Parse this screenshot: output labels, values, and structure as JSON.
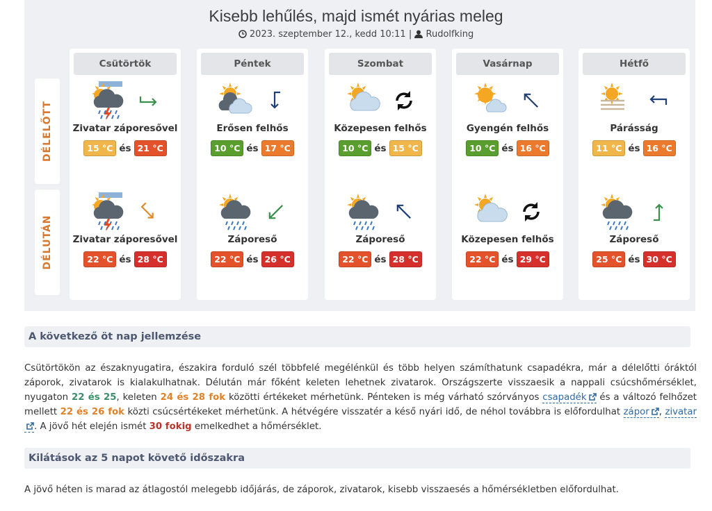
{
  "header": {
    "title": "Kisebb lehűlés, majd ismét nyárias meleg",
    "date": "2023. szeptember 12., kedd 10:11",
    "separator": "|",
    "author": "Rudolfking"
  },
  "periods": [
    "DÉLELŐTT",
    "DÉLUTÁN"
  ],
  "connector": "és",
  "days": [
    {
      "name": "Csütörtök",
      "morning": {
        "weather": "Zivatar záporesővel",
        "min": {
          "text": "15 °C",
          "color": "#f0b64a"
        },
        "max": {
          "text": "21 °C",
          "color": "#e4522c"
        }
      },
      "afternoon": {
        "weather": "Zivatar záporesővel",
        "min": {
          "text": "22 °C",
          "color": "#e4522c"
        },
        "max": {
          "text": "28 °C",
          "color": "#d6302c"
        }
      }
    },
    {
      "name": "Péntek",
      "morning": {
        "weather": "Erősen felhős",
        "min": {
          "text": "10 °C",
          "color": "#5a9e2f"
        },
        "max": {
          "text": "17 °C",
          "color": "#ec7a2c"
        }
      },
      "afternoon": {
        "weather": "Zápores​ő",
        "min": {
          "text": "22 °C",
          "color": "#e4522c"
        },
        "max": {
          "text": "26 °C",
          "color": "#d6302c"
        }
      }
    },
    {
      "name": "Szombat",
      "morning": {
        "weather": "Közepesen felhős",
        "min": {
          "text": "10 °C",
          "color": "#5a9e2f"
        },
        "max": {
          "text": "15 °C",
          "color": "#f0b64a"
        }
      },
      "afternoon": {
        "weather": "Zápores​ő",
        "min": {
          "text": "22 °C",
          "color": "#e4522c"
        },
        "max": {
          "text": "28 °C",
          "color": "#d6302c"
        }
      }
    },
    {
      "name": "Vasárnap",
      "morning": {
        "weather": "Gyengén felhős",
        "min": {
          "text": "10 °C",
          "color": "#5a9e2f"
        },
        "max": {
          "text": "16 °C",
          "color": "#ec7a2c"
        }
      },
      "afternoon": {
        "weather": "Közepesen felhős",
        "min": {
          "text": "22 °C",
          "color": "#e4522c"
        },
        "max": {
          "text": "29 °C",
          "color": "#d6302c"
        }
      }
    },
    {
      "name": "Hétfő",
      "morning": {
        "weather": "Párásság",
        "min": {
          "text": "11 °C",
          "color": "#f0b64a"
        },
        "max": {
          "text": "16 °C",
          "color": "#ec7a2c"
        }
      },
      "afternoon": {
        "weather": "Zápores​ő",
        "min": {
          "text": "25 °C",
          "color": "#e4522c"
        },
        "max": {
          "text": "30 °C",
          "color": "#d6302c"
        }
      }
    }
  ],
  "sections": [
    {
      "heading": "A következő öt nap jellemzése",
      "paragraph": [
        {
          "text": "Csütörtökön az északnyugatira, északira forduló szél többfelé megélénkül és több helyen számíthatunk csapadékra, már a délelőtti óráktól záporok, zivatarok is kialakulhatnak. Délután már főként keleten lehetnek zivatarok. Országszerte visszaesik a nappali csúcshőmérséklet, nyugaton "
        },
        {
          "text": "22 és 25",
          "color": "#3c8f6a"
        },
        {
          "text": ", keleten "
        },
        {
          "text": "24 és 28 fok",
          "color": "#e0822a"
        },
        {
          "text": " közötti értékeket mérhetünk. Pénteken is még várható szórványos "
        },
        {
          "text": "csapadék",
          "link": true
        },
        {
          "text": " és a változó felhőzet mellett "
        },
        {
          "text": "22 és 26 fok",
          "color": "#e0822a"
        },
        {
          "text": " közti csúcsértékeket mérhetünk. A hétvégére visszatér a késő nyári idő, de néhol továbbra is előfordulhat "
        },
        {
          "text": "zápor",
          "link": true
        },
        {
          "text": ", "
        },
        {
          "text": "zivatar",
          "link": true
        },
        {
          "text": ". A jövő hét elején ismét "
        },
        {
          "text": "30 fokig",
          "color": "#b8352c"
        },
        {
          "text": " emelkedhet a hőmérséklet."
        }
      ]
    },
    {
      "heading": "Kilátások az 5 napot követő időszakra",
      "paragraph": [
        {
          "text": "A jövő héten is marad az átlagostól melegebb időjárás, de záporok, zivatarok, kisebb visszaesés a hőmérsékletben előfordulhat."
        }
      ]
    }
  ]
}
